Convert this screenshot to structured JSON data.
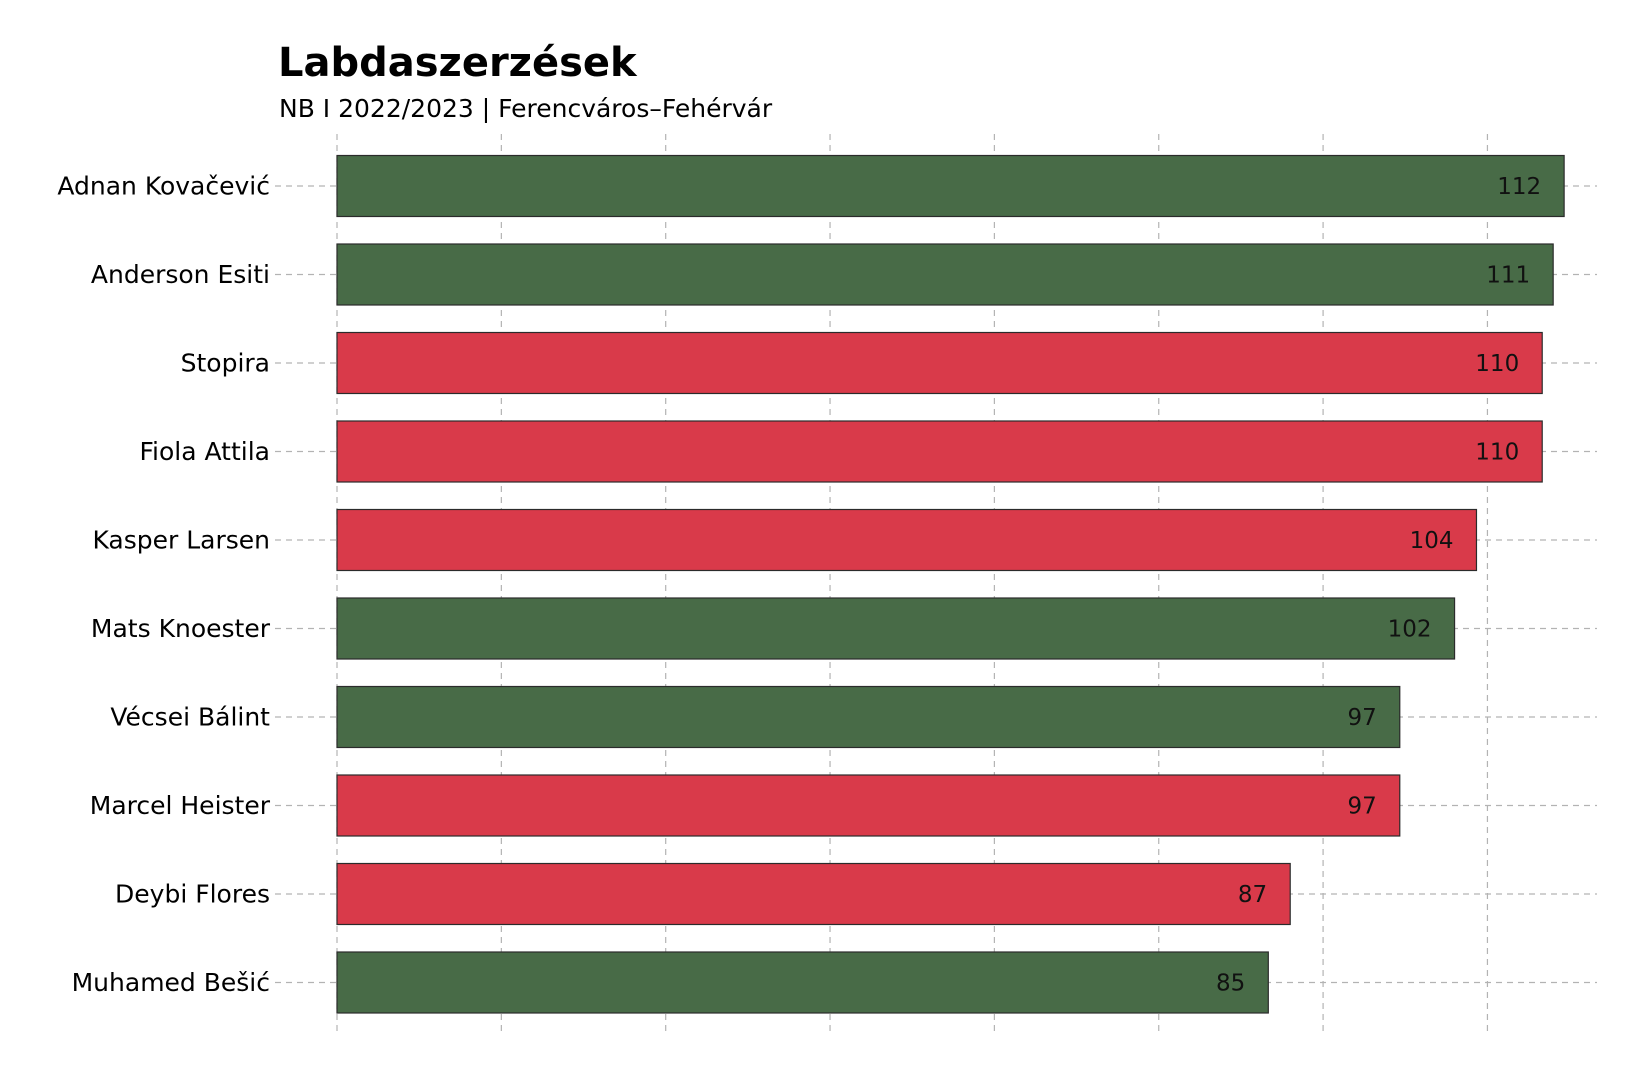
{
  "chart_data": {
    "type": "bar",
    "orientation": "horizontal",
    "title": "Labdaszerzések",
    "subtitle": "NB I 2022/2023 | Ferencváros–Fehérvár",
    "categories": [
      "Adnan Kovačević",
      "Anderson Esiti",
      "Stopira",
      "Fiola Attila",
      "Kasper Larsen",
      "Mats Knoester",
      "Vécsei Bálint",
      "Marcel Heister",
      "Deybi Flores",
      "Muhamed Bešić"
    ],
    "values": [
      112,
      111,
      110,
      110,
      104,
      102,
      97,
      97,
      87,
      85
    ],
    "bar_colors": [
      "#486b47",
      "#486b47",
      "#d93a4a",
      "#d93a4a",
      "#d93a4a",
      "#486b47",
      "#486b47",
      "#d93a4a",
      "#d93a4a",
      "#486b47"
    ],
    "xlim": [
      0,
      115
    ],
    "x_gridlines": [
      0,
      15,
      30,
      45,
      60,
      75,
      90,
      105
    ],
    "grid": true,
    "grid_style": "dashed",
    "legend": "none",
    "xlabel": "",
    "ylabel": ""
  }
}
